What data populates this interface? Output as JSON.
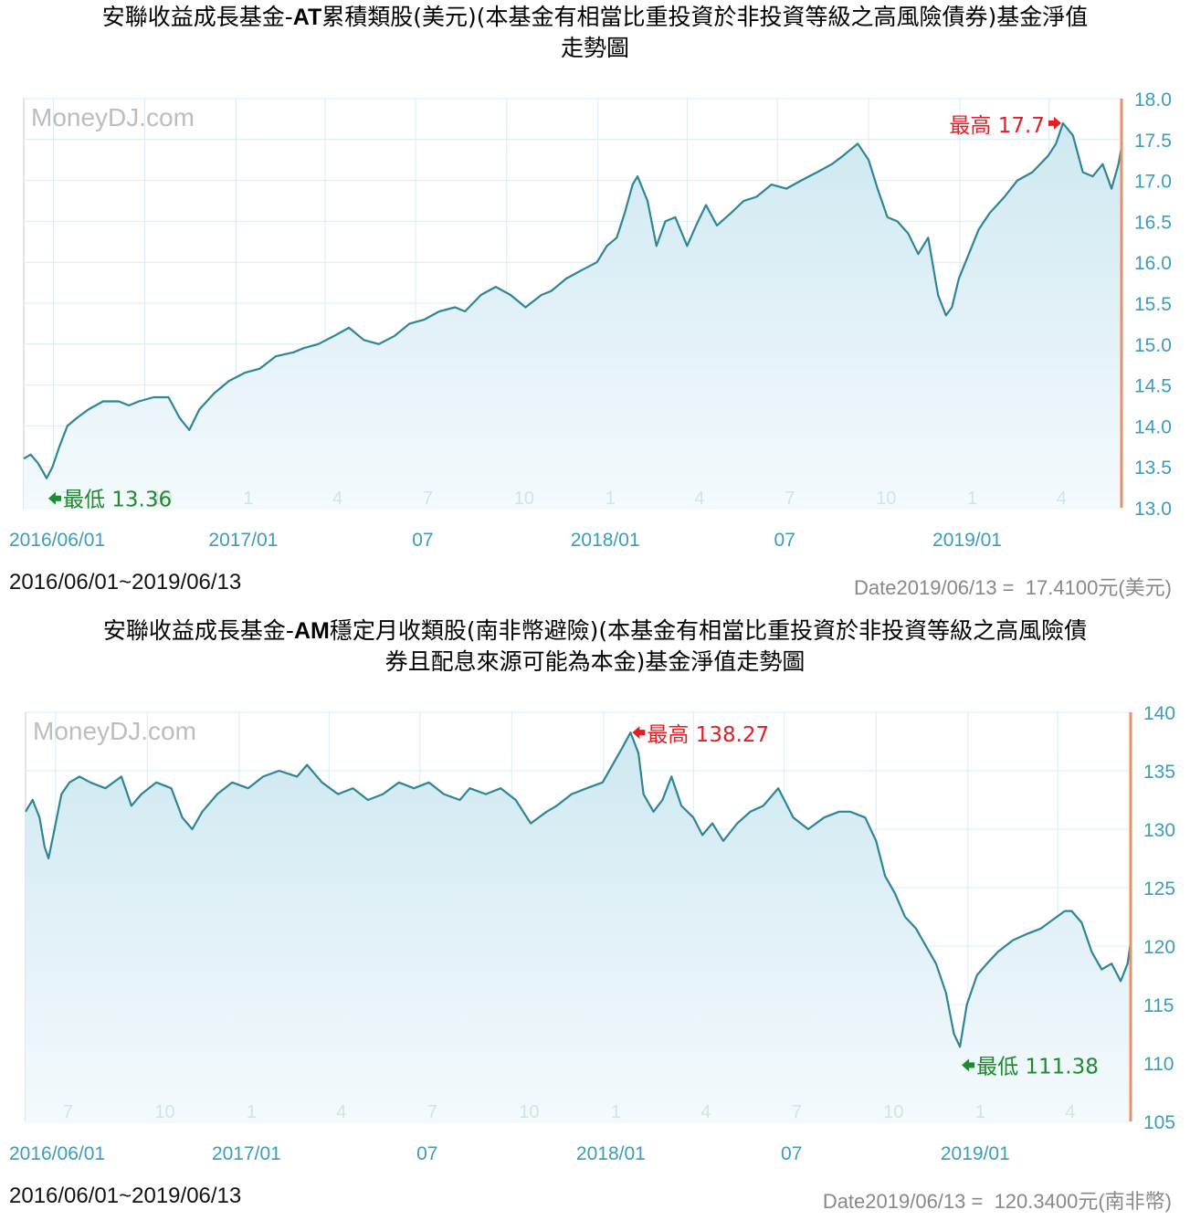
{
  "colors": {
    "line": "#2e8595",
    "fill_top": "#cfe8f1",
    "fill_bottom": "#f4fafd",
    "grid": "#d8ecf4",
    "axis_label": "#3d9bbd",
    "month_label": "#cfe3ec",
    "high": "#e31e24",
    "low": "#1d8a2d",
    "right_bar": "#ea8f6a",
    "watermark": "#bdbdbd",
    "frame": "#c8c8c8"
  },
  "chart_data": [
    {
      "type": "line",
      "title_parts": [
        "安聯收益成長基金-",
        "AT",
        "累積類股(美元)(本基金有相當比重投資於非投資等級之高風險債券)基金淨值",
        "走勢圖"
      ],
      "watermark": "MoneyDJ.com",
      "ylim": [
        13.0,
        18.0
      ],
      "yticks": [
        "18.0",
        "17.5",
        "17.0",
        "16.5",
        "16.0",
        "15.5",
        "15.0",
        "14.5",
        "14.0",
        "13.5",
        "13.0"
      ],
      "xlabels": [
        "2016/06/01",
        "2017/01",
        "07",
        "2018/01",
        "07",
        "2019/01"
      ],
      "month_labels": [
        "7",
        "10",
        "1",
        "4",
        "7",
        "10",
        "1",
        "4",
        "7",
        "10",
        "1",
        "4"
      ],
      "high": {
        "label": "最高",
        "value": "17.7",
        "date": "2019-04-15",
        "y": 17.7
      },
      "low": {
        "label": "最低",
        "value": "13.36",
        "date": "2016-06-24",
        "y": 13.36
      },
      "range_text": "2016/06/01~2019/06/13",
      "latest_text": "Date2019/06/13 =  17.4100元(美元)",
      "series": {
        "dates": [
          "2016-06-01",
          "2016-06-08",
          "2016-06-15",
          "2016-06-20",
          "2016-06-24",
          "2016-06-30",
          "2016-07-07",
          "2016-07-15",
          "2016-07-25",
          "2016-08-05",
          "2016-08-20",
          "2016-09-05",
          "2016-09-15",
          "2016-09-25",
          "2016-10-10",
          "2016-10-25",
          "2016-11-05",
          "2016-11-15",
          "2016-11-25",
          "2016-12-10",
          "2016-12-25",
          "2017-01-10",
          "2017-01-25",
          "2017-02-10",
          "2017-02-28",
          "2017-03-10",
          "2017-03-25",
          "2017-04-10",
          "2017-04-25",
          "2017-05-10",
          "2017-05-25",
          "2017-06-10",
          "2017-06-25",
          "2017-07-10",
          "2017-07-25",
          "2017-08-10",
          "2017-08-20",
          "2017-09-05",
          "2017-09-20",
          "2017-10-05",
          "2017-10-20",
          "2017-11-05",
          "2017-11-15",
          "2017-11-30",
          "2017-12-15",
          "2017-12-31",
          "2018-01-10",
          "2018-01-20",
          "2018-01-28",
          "2018-02-05",
          "2018-02-10",
          "2018-02-20",
          "2018-03-01",
          "2018-03-10",
          "2018-03-20",
          "2018-04-01",
          "2018-04-10",
          "2018-04-20",
          "2018-05-01",
          "2018-05-15",
          "2018-05-28",
          "2018-06-10",
          "2018-06-25",
          "2018-07-10",
          "2018-07-25",
          "2018-08-10",
          "2018-08-25",
          "2018-09-05",
          "2018-09-20",
          "2018-10-01",
          "2018-10-10",
          "2018-10-20",
          "2018-10-30",
          "2018-11-10",
          "2018-11-20",
          "2018-11-30",
          "2018-12-10",
          "2018-12-18",
          "2018-12-24",
          "2018-12-31",
          "2019-01-10",
          "2019-01-20",
          "2019-01-31",
          "2019-02-15",
          "2019-02-28",
          "2019-03-15",
          "2019-03-31",
          "2019-04-08",
          "2019-04-15",
          "2019-04-25",
          "2019-05-05",
          "2019-05-15",
          "2019-05-25",
          "2019-06-03",
          "2019-06-10",
          "2019-06-13"
        ],
        "values": [
          13.6,
          13.65,
          13.55,
          13.45,
          13.36,
          13.5,
          13.75,
          14.0,
          14.1,
          14.2,
          14.3,
          14.3,
          14.25,
          14.3,
          14.35,
          14.35,
          14.1,
          13.95,
          14.2,
          14.4,
          14.55,
          14.65,
          14.7,
          14.85,
          14.9,
          14.95,
          15.0,
          15.1,
          15.2,
          15.05,
          15.0,
          15.1,
          15.25,
          15.3,
          15.4,
          15.45,
          15.4,
          15.6,
          15.7,
          15.6,
          15.45,
          15.6,
          15.65,
          15.8,
          15.9,
          16.0,
          16.2,
          16.3,
          16.6,
          16.95,
          17.05,
          16.75,
          16.2,
          16.5,
          16.55,
          16.2,
          16.45,
          16.7,
          16.45,
          16.6,
          16.75,
          16.8,
          16.95,
          16.9,
          17.0,
          17.1,
          17.2,
          17.3,
          17.45,
          17.25,
          16.9,
          16.55,
          16.5,
          16.35,
          16.1,
          16.3,
          15.6,
          15.35,
          15.45,
          15.8,
          16.1,
          16.4,
          16.6,
          16.8,
          17.0,
          17.1,
          17.3,
          17.45,
          17.7,
          17.55,
          17.1,
          17.05,
          17.2,
          16.9,
          17.2,
          17.41
        ]
      }
    },
    {
      "type": "line",
      "title_parts": [
        "安聯收益成長基金-",
        "AM",
        "穩定月收類股(南非幣避險)(本基金有相當比重投資於非投資等級之高風險債",
        "券且配息來源可能為本金)基金淨值走勢圖"
      ],
      "watermark": "MoneyDJ.com",
      "ylim": [
        105,
        140
      ],
      "yticks": [
        "140",
        "135",
        "130",
        "125",
        "120",
        "115",
        "110",
        "105"
      ],
      "xlabels": [
        "2016/06/01",
        "2017/01",
        "07",
        "2018/01",
        "07",
        "2019/01"
      ],
      "month_labels": [
        "7",
        "10",
        "1",
        "4",
        "7",
        "10",
        "1",
        "4",
        "7",
        "10",
        "1",
        "4"
      ],
      "high": {
        "label": "最高",
        "value": "138.27",
        "date": "2018-01-28",
        "y": 138.27
      },
      "low": {
        "label": "最低",
        "value": "111.38",
        "date": "2018-12-24",
        "y": 111.38
      },
      "range_text": "2016/06/01~2019/06/13",
      "latest_text": "Date2019/06/13 =  120.3400元(南非幣)",
      "series": {
        "dates": [
          "2016-06-01",
          "2016-06-08",
          "2016-06-15",
          "2016-06-20",
          "2016-06-24",
          "2016-06-30",
          "2016-07-07",
          "2016-07-15",
          "2016-07-25",
          "2016-08-05",
          "2016-08-20",
          "2016-09-05",
          "2016-09-15",
          "2016-09-25",
          "2016-10-10",
          "2016-10-25",
          "2016-11-05",
          "2016-11-15",
          "2016-11-25",
          "2016-12-10",
          "2016-12-25",
          "2017-01-10",
          "2017-01-25",
          "2017-02-10",
          "2017-02-28",
          "2017-03-10",
          "2017-03-25",
          "2017-04-10",
          "2017-04-25",
          "2017-05-10",
          "2017-05-25",
          "2017-06-10",
          "2017-06-25",
          "2017-07-10",
          "2017-07-25",
          "2017-08-10",
          "2017-08-20",
          "2017-09-05",
          "2017-09-20",
          "2017-10-05",
          "2017-10-20",
          "2017-11-05",
          "2017-11-15",
          "2017-11-30",
          "2017-12-15",
          "2017-12-31",
          "2018-01-10",
          "2018-01-20",
          "2018-01-28",
          "2018-02-05",
          "2018-02-10",
          "2018-02-20",
          "2018-03-01",
          "2018-03-10",
          "2018-03-20",
          "2018-04-01",
          "2018-04-10",
          "2018-04-20",
          "2018-05-01",
          "2018-05-15",
          "2018-05-28",
          "2018-06-10",
          "2018-06-25",
          "2018-07-10",
          "2018-07-25",
          "2018-08-10",
          "2018-08-25",
          "2018-09-05",
          "2018-09-20",
          "2018-10-01",
          "2018-10-10",
          "2018-10-20",
          "2018-10-30",
          "2018-11-10",
          "2018-11-20",
          "2018-11-30",
          "2018-12-10",
          "2018-12-18",
          "2018-12-24",
          "2018-12-31",
          "2019-01-10",
          "2019-01-20",
          "2019-01-31",
          "2019-02-15",
          "2019-02-28",
          "2019-03-15",
          "2019-03-31",
          "2019-04-08",
          "2019-04-15",
          "2019-04-25",
          "2019-05-05",
          "2019-05-15",
          "2019-05-25",
          "2019-06-03",
          "2019-06-10",
          "2019-06-13"
        ],
        "values": [
          131.5,
          132.5,
          131.0,
          128.5,
          127.5,
          130.0,
          133.0,
          134.0,
          134.5,
          134.0,
          133.5,
          134.5,
          132.0,
          133.0,
          134.0,
          133.5,
          131.0,
          130.0,
          131.5,
          133.0,
          134.0,
          133.5,
          134.5,
          135.0,
          134.5,
          135.5,
          134.0,
          133.0,
          133.5,
          132.5,
          133.0,
          134.0,
          133.5,
          134.0,
          133.0,
          132.5,
          133.5,
          133.0,
          133.5,
          132.5,
          130.5,
          131.5,
          132.0,
          133.0,
          133.5,
          134.0,
          135.5,
          137.0,
          138.27,
          136.5,
          133.0,
          131.5,
          132.5,
          134.5,
          132.0,
          131.0,
          129.5,
          130.5,
          129.0,
          130.5,
          131.5,
          132.0,
          133.5,
          131.0,
          130.0,
          131.0,
          131.5,
          131.5,
          131.0,
          129.0,
          126.0,
          124.5,
          122.5,
          121.5,
          120.0,
          118.5,
          116.0,
          112.5,
          111.38,
          115.0,
          117.5,
          118.5,
          119.5,
          120.5,
          121.0,
          121.5,
          122.5,
          123.0,
          123.0,
          122.0,
          119.5,
          118.0,
          118.5,
          117.0,
          118.5,
          120.34
        ]
      }
    }
  ]
}
